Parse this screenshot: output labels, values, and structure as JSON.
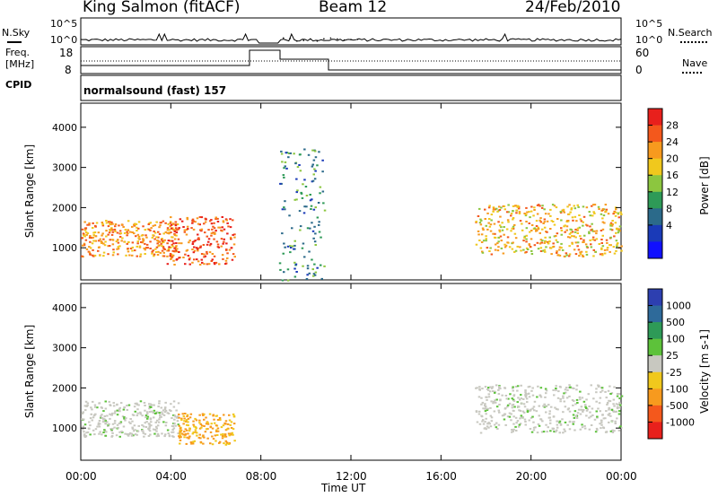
{
  "header": {
    "station": "King Salmon (fitACF)",
    "beam": "Beam 12",
    "date": "24/Feb/2010"
  },
  "strip": {
    "nsky_label": "N.Sky",
    "nsearch_label": "N.Search",
    "noise_ticks": [
      "10^5",
      "10^0"
    ],
    "freq_label_1": "Freq.",
    "freq_label_2": "[MHz]",
    "freq_ticks": [
      "18",
      "8"
    ],
    "nave_label": "Nave",
    "nave_ticks": [
      "60",
      "0"
    ],
    "cpid_label": "CPID",
    "cpid_text": "normalsound (fast) 157"
  },
  "time_axis": {
    "ticks": [
      "00:00",
      "04:00",
      "08:00",
      "12:00",
      "16:00",
      "20:00",
      "00:00"
    ],
    "label": "Time UT"
  },
  "chart_data": [
    {
      "type": "heatmap",
      "title": "",
      "quantity": "Power",
      "xlabel": "Time UT",
      "ylabel": "Slant Range [km]",
      "ylim": [
        200,
        4600
      ],
      "y_ticks": [
        "1000",
        "2000",
        "3000",
        "4000"
      ],
      "colorbar": {
        "label": "Power [dB]",
        "ticks": [
          "28",
          "24",
          "20",
          "16",
          "12",
          "8",
          "4"
        ],
        "colors": [
          "#e8201c",
          "#f4581c",
          "#f79a1e",
          "#f0c81d",
          "#8cc63f",
          "#2e9a57",
          "#2b6a8a",
          "#1a3ab8",
          "#1010ff"
        ]
      },
      "echo_regions": [
        {
          "t_start": 0.0,
          "t_end": 4.3,
          "range_low": 800,
          "range_high": 1700,
          "level": 20
        },
        {
          "t_start": 3.8,
          "t_end": 6.8,
          "range_low": 600,
          "range_high": 1800,
          "level": 24
        },
        {
          "t_start": 8.8,
          "t_end": 10.8,
          "range_low": 200,
          "range_high": 3500,
          "level": 6
        },
        {
          "t_start": 17.5,
          "t_end": 24.0,
          "range_low": 800,
          "range_high": 2100,
          "level": 18
        }
      ]
    },
    {
      "type": "heatmap",
      "title": "",
      "quantity": "Velocity",
      "xlabel": "Time UT",
      "ylabel": "Slant Range [km]",
      "ylim": [
        200,
        4600
      ],
      "y_ticks": [
        "1000",
        "2000",
        "3000",
        "4000"
      ],
      "colorbar": {
        "label": "Velocity [m s-1]",
        "ticks": [
          "1000",
          "500",
          "100",
          "25",
          "-25",
          "-100",
          "-500",
          "-1000"
        ],
        "colors": [
          "#2d3fb0",
          "#2e6a9a",
          "#2e9a57",
          "#5dc23a",
          "#c8c8c0",
          "#f0c81d",
          "#f79a1e",
          "#f4581c",
          "#e8201c"
        ]
      },
      "echo_regions": [
        {
          "t_start": 0.0,
          "t_end": 4.3,
          "range_low": 800,
          "range_high": 1700,
          "velocity": 0
        },
        {
          "t_start": 4.3,
          "t_end": 6.8,
          "range_low": 600,
          "range_high": 1400,
          "velocity": -300
        },
        {
          "t_start": 17.5,
          "t_end": 24.0,
          "range_low": 900,
          "range_high": 2100,
          "velocity": 0
        }
      ]
    }
  ]
}
